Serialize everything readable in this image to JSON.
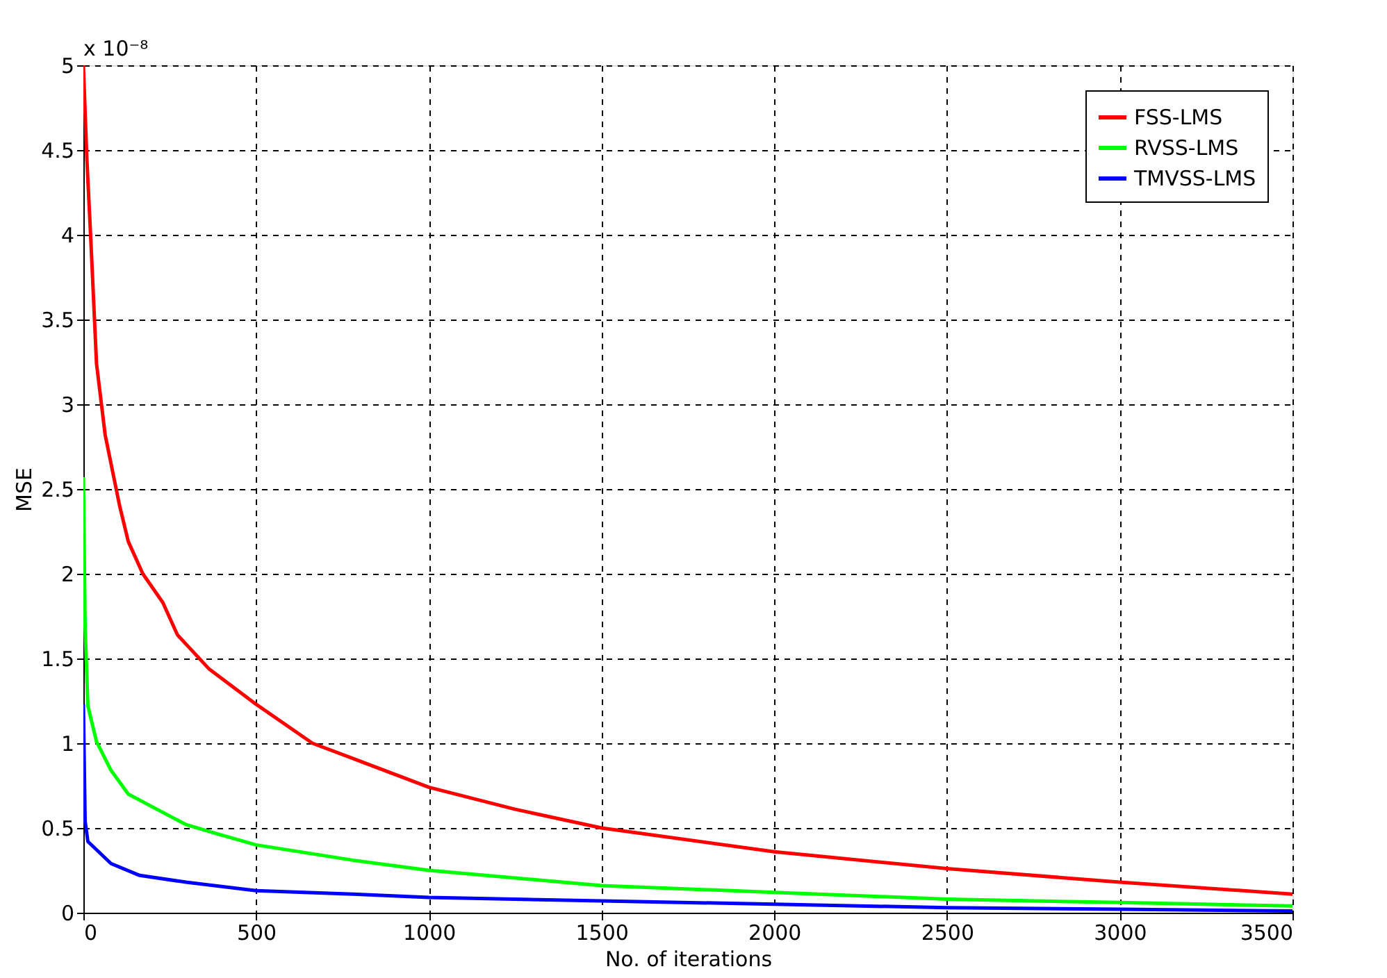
{
  "chart_data": {
    "type": "line",
    "xlabel": "No. of iterations",
    "ylabel": "MSE",
    "annotations": [
      "x 10⁻⁸"
    ],
    "xlim": [
      0,
      3500
    ],
    "xticks": [
      0,
      500,
      1000,
      1500,
      2000,
      2500,
      3000,
      3500
    ],
    "ylim": [
      0,
      5
    ],
    "yticks": [
      0,
      0.5,
      1,
      1.5,
      2,
      2.5,
      3,
      3.5,
      4,
      4.5,
      5
    ],
    "grid": true,
    "legend": "top right",
    "line_style": "solid",
    "marker": "none",
    "series": [
      {
        "name": "FSS-LMS",
        "color": "#ff0000",
        "x": [
          0,
          10,
          22,
          38,
          63,
          105,
          130,
          172,
          230,
          272,
          363,
          500,
          663,
          780,
          1000,
          1250,
          1500,
          2000,
          2500,
          3000,
          3500
        ],
        "values": [
          5,
          4.45,
          3.95,
          3.24,
          2.82,
          2.4,
          2.19,
          2.0,
          1.83,
          1.64,
          1.44,
          1.23,
          1.0,
          0.91,
          0.74,
          0.61,
          0.5,
          0.36,
          0.26,
          0.18,
          0.11
        ]
      },
      {
        "name": "RVSS-LMS",
        "color": "#00ff00",
        "x": [
          0,
          5,
          13,
          38,
          80,
          130,
          213,
          297,
          380,
          500,
          780,
          1000,
          1500,
          2000,
          2500,
          3000,
          3500
        ],
        "values": [
          2.57,
          1.69,
          1.22,
          1.01,
          0.84,
          0.7,
          0.61,
          0.52,
          0.47,
          0.4,
          0.31,
          0.25,
          0.16,
          0.12,
          0.08,
          0.06,
          0.04
        ]
      },
      {
        "name": "TMVSS-LMS",
        "color": "#0000ff",
        "x": [
          0,
          5,
          13,
          80,
          163,
          297,
          500,
          780,
          1000,
          1500,
          2000,
          2500,
          3000,
          3500
        ],
        "values": [
          1.23,
          0.54,
          0.42,
          0.29,
          0.22,
          0.18,
          0.13,
          0.11,
          0.09,
          0.07,
          0.05,
          0.03,
          0.02,
          0.01
        ]
      }
    ]
  }
}
